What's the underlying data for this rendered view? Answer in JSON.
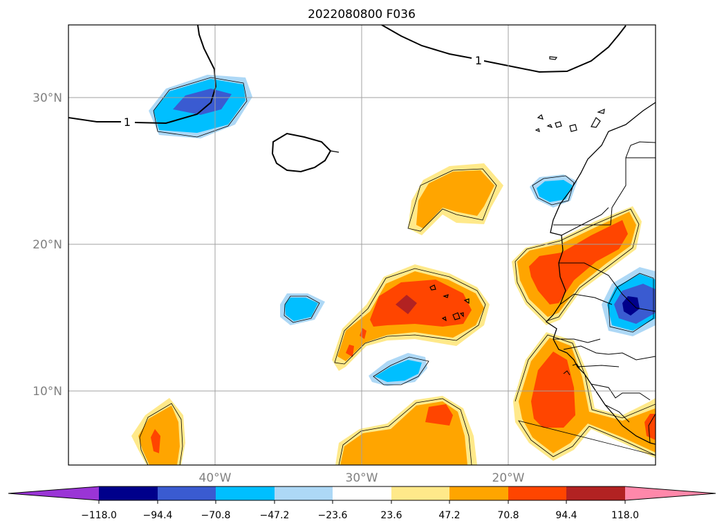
{
  "title": "2022080800 F036",
  "map": {
    "lat_labels": [
      "30°N",
      "20°N",
      "10°N"
    ],
    "lon_labels": [
      "40°W",
      "30°W",
      "20°W"
    ],
    "contour_labels": [
      "1",
      "1"
    ],
    "gridlines": true
  },
  "colorbar": {
    "orientation": "horizontal",
    "extend": "both",
    "tick_labels": [
      "−118.0",
      "−94.4",
      "−70.8",
      "−47.2",
      "−23.6",
      "23.6",
      "47.2",
      "70.8",
      "94.4",
      "118.0"
    ],
    "colors": {
      "under": "#9a35d6",
      "c1": "#00008b",
      "c2": "#3a5bd1",
      "c3": "#00bfff",
      "c4": "#add8f6",
      "c5": "#ffffff",
      "c6": "#ffe98a",
      "c7": "#ffa500",
      "c8": "#ff4500",
      "c9": "#b22222",
      "over": "#ff88aa"
    }
  }
}
